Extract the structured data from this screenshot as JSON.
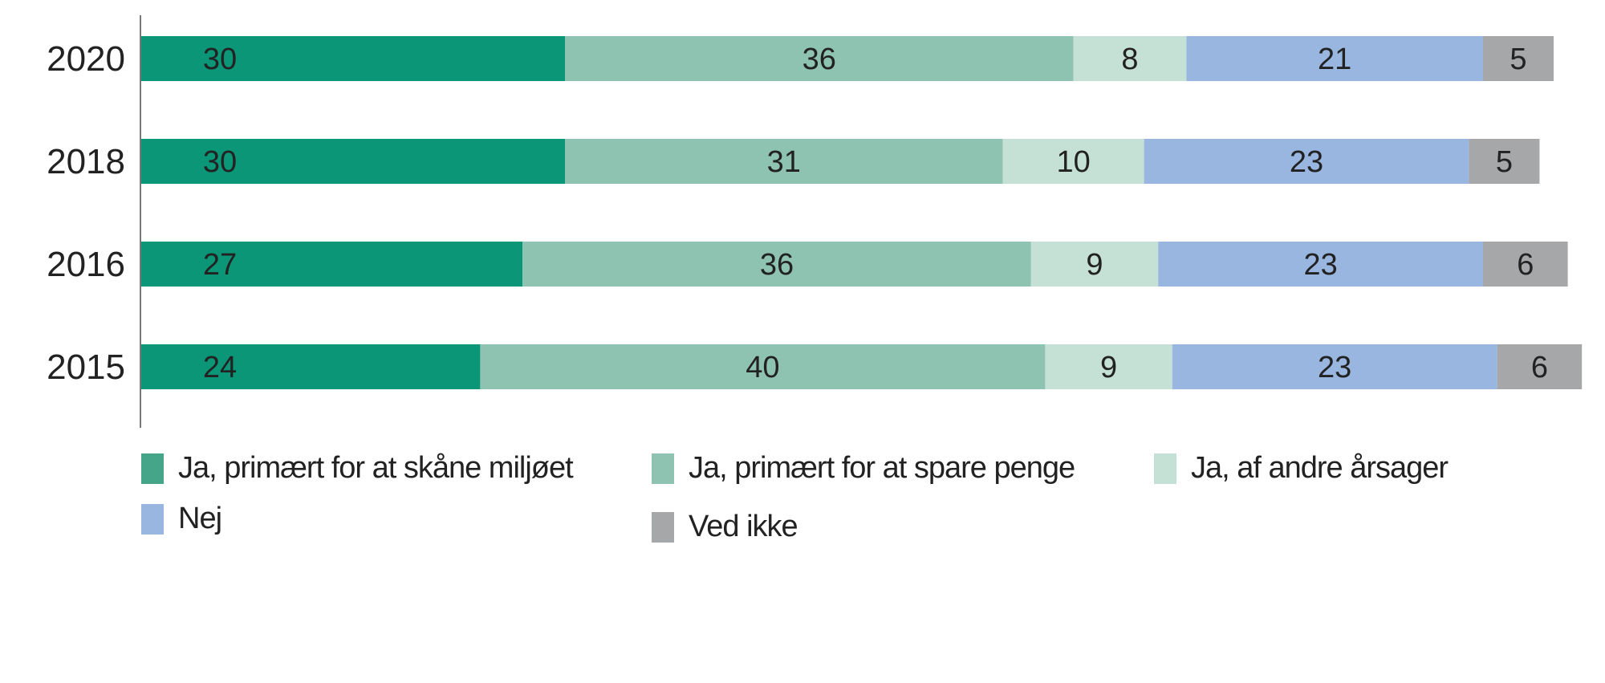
{
  "chart_data": {
    "type": "bar",
    "orientation": "horizontal",
    "stacked": true,
    "title": "",
    "xlabel": "",
    "ylabel": "",
    "categories": [
      "2020",
      "2018",
      "2016",
      "2015"
    ],
    "series": [
      {
        "name": "Ja, primært for at skåne miljøet",
        "color": "#0b9678",
        "legend_color": "#45a588",
        "values": [
          30,
          30,
          27,
          24
        ]
      },
      {
        "name": "Ja, primært for at spare penge",
        "color": "#8fc3b1",
        "legend_color": "#8fc3b1",
        "values": [
          36,
          31,
          36,
          40
        ]
      },
      {
        "name": "Ja, af andre årsager",
        "color": "#c5e0d4",
        "legend_color": "#c5e0d4",
        "values": [
          8,
          10,
          9,
          9
        ]
      },
      {
        "name": "Nej",
        "color": "#98b6e0",
        "legend_color": "#98b6e0",
        "values": [
          21,
          23,
          23,
          23
        ]
      },
      {
        "name": "Ved ikke",
        "color": "#a6a7a9",
        "legend_color": "#a6a7a9",
        "values": [
          5,
          5,
          6,
          6
        ]
      }
    ],
    "legend_placement": "bottom",
    "grid": false
  }
}
